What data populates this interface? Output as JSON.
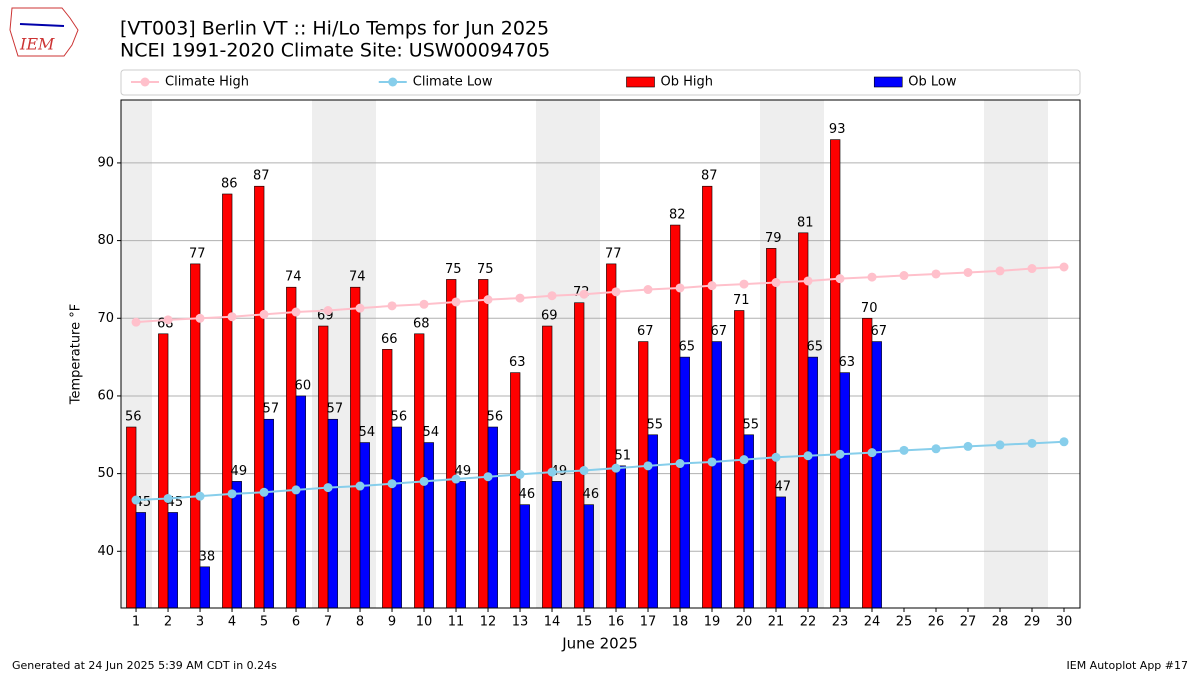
{
  "logo": "IEM",
  "footer": {
    "left": "Generated at 24 Jun 2025 5:39 AM CDT in 0.24s",
    "right": "IEM Autoplot App #17"
  },
  "chart_data": {
    "type": "bar",
    "title": "[VT003] Berlin  VT :: Hi/Lo Temps for Jun 2025",
    "subtitle": "NCEI 1991-2020 Climate Site: USW00094705",
    "x_label": "June 2025",
    "y_label": "Temperature °F",
    "x": [
      1,
      2,
      3,
      4,
      5,
      6,
      7,
      8,
      9,
      10,
      11,
      12,
      13,
      14,
      15,
      16,
      17,
      18,
      19,
      20,
      21,
      22,
      23,
      24,
      25,
      26,
      27,
      28,
      29,
      30
    ],
    "xlim": [
      0.53,
      30.5
    ],
    "xticks": [
      1,
      2,
      3,
      4,
      5,
      6,
      7,
      8,
      9,
      10,
      11,
      12,
      13,
      14,
      15,
      16,
      17,
      18,
      19,
      20,
      21,
      22,
      23,
      24,
      25,
      26,
      27,
      28,
      29,
      30
    ],
    "ylim": [
      32.7,
      98.1
    ],
    "yticks": [
      40,
      50,
      60,
      70,
      80,
      90
    ],
    "grid": "y",
    "legend": "top",
    "series": [
      {
        "name": "Climate High",
        "type": "line",
        "color": "#ffc0cb",
        "values": [
          69.5,
          69.8,
          70.0,
          70.2,
          70.5,
          70.8,
          71.0,
          71.3,
          71.6,
          71.8,
          72.1,
          72.4,
          72.6,
          72.9,
          73.1,
          73.4,
          73.7,
          73.9,
          74.2,
          74.4,
          74.6,
          74.8,
          75.1,
          75.3,
          75.5,
          75.7,
          75.9,
          76.1,
          76.4,
          76.6
        ]
      },
      {
        "name": "Climate Low",
        "type": "line",
        "color": "#87ceeb",
        "values": [
          46.6,
          46.8,
          47.1,
          47.4,
          47.6,
          47.9,
          48.2,
          48.4,
          48.7,
          49.0,
          49.3,
          49.6,
          49.9,
          50.2,
          50.4,
          50.7,
          51.0,
          51.3,
          51.5,
          51.8,
          52.1,
          52.3,
          52.5,
          52.7,
          53.0,
          53.2,
          53.5,
          53.7,
          53.9,
          54.1
        ]
      },
      {
        "name": "Ob High",
        "type": "bar",
        "color": "#ff0000",
        "values": [
          56,
          68,
          77,
          86,
          87,
          74,
          69,
          74,
          66,
          68,
          75,
          75,
          63,
          69,
          72,
          77,
          67,
          82,
          87,
          71,
          79,
          81,
          93,
          70,
          null,
          null,
          null,
          null,
          null,
          null
        ]
      },
      {
        "name": "Ob Low",
        "type": "bar",
        "color": "#0000ff",
        "values": [
          45,
          45,
          38,
          49,
          57,
          60,
          57,
          54,
          56,
          54,
          49,
          56,
          46,
          49,
          46,
          51,
          55,
          65,
          67,
          55,
          47,
          65,
          63,
          67,
          null,
          null,
          null,
          null,
          null,
          null
        ]
      }
    ]
  }
}
